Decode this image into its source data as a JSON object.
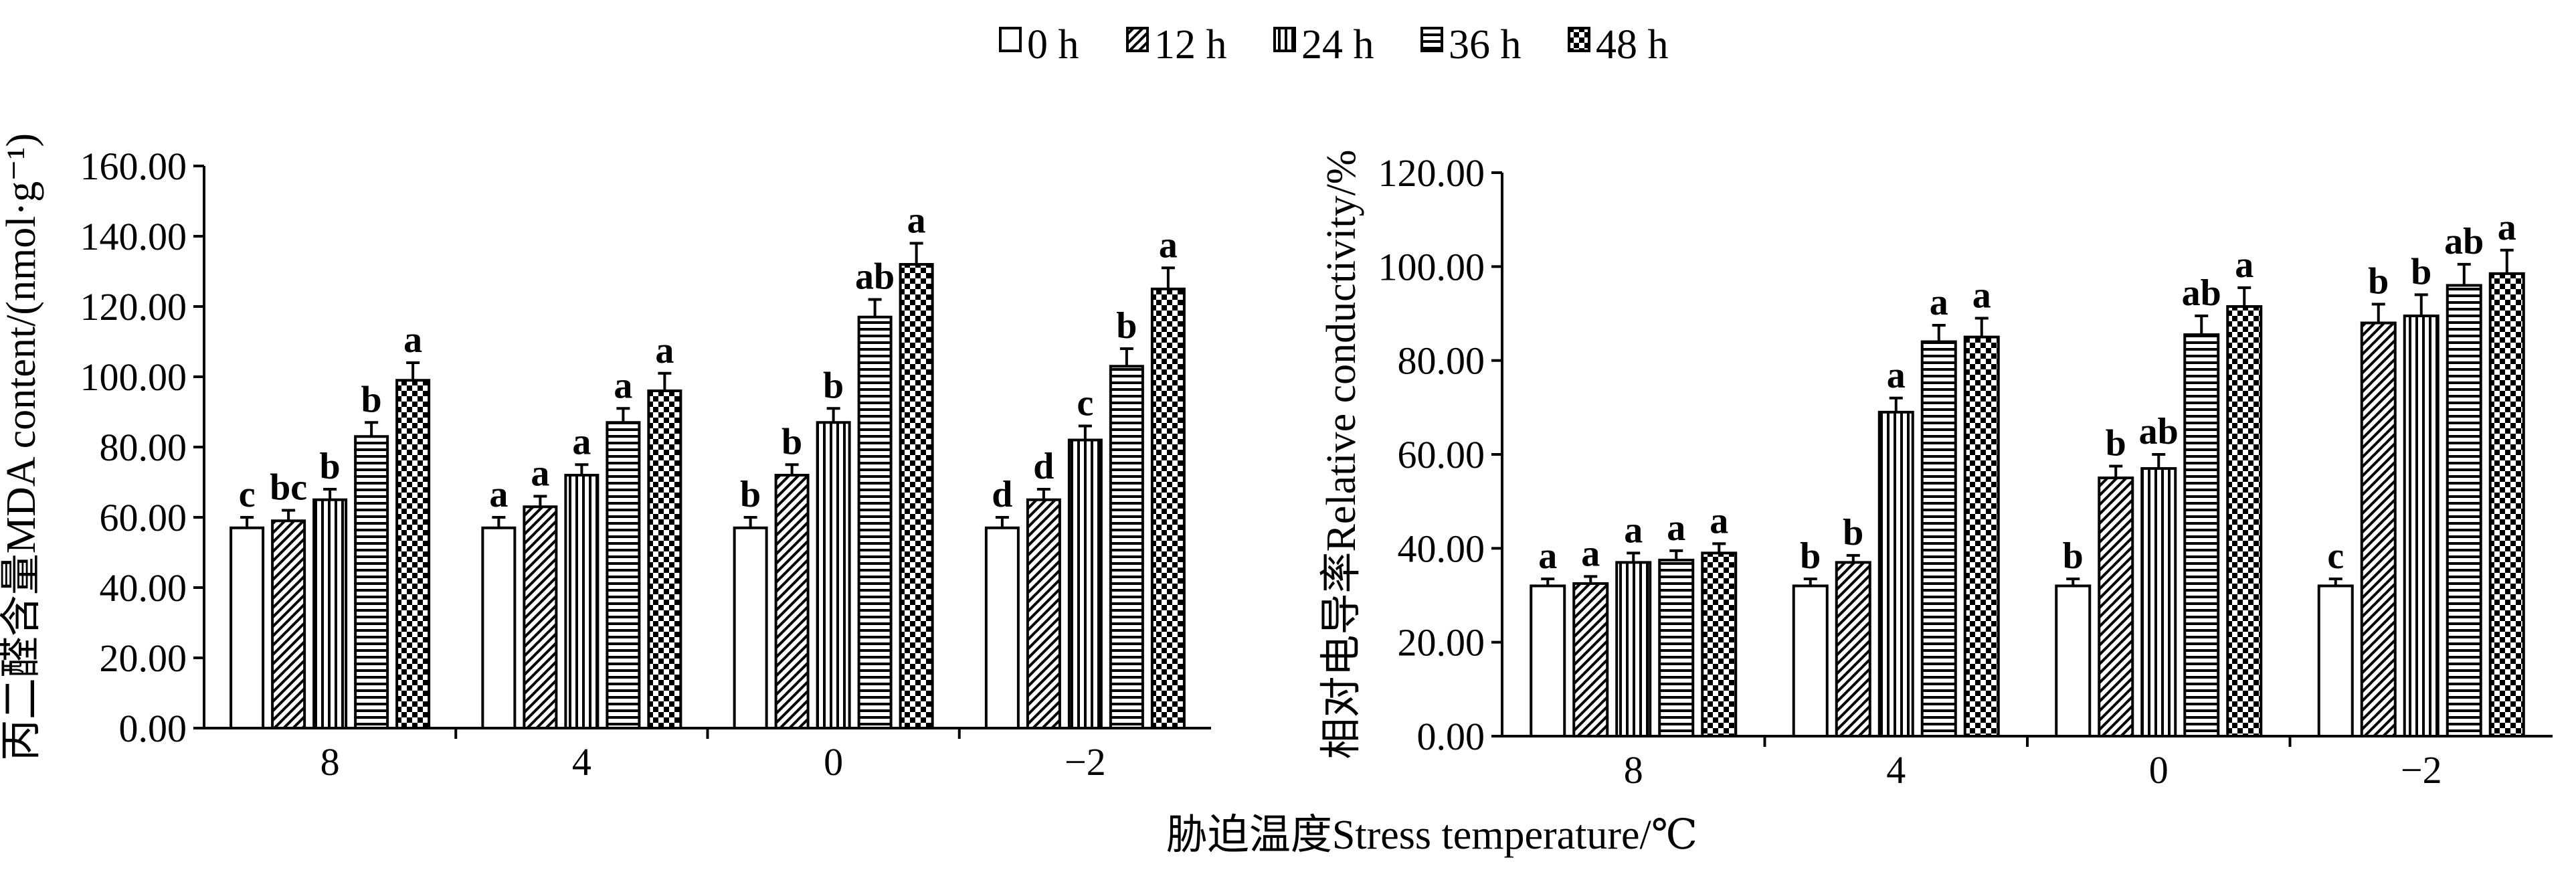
{
  "chart_data": [
    {
      "type": "bar",
      "categories": [
        "8",
        "4",
        "0",
        "−2"
      ],
      "series": [
        {
          "name": "0 h",
          "values": [
            57,
            57,
            57,
            57
          ]
        },
        {
          "name": "12 h",
          "values": [
            59,
            63,
            72,
            65
          ]
        },
        {
          "name": "24 h",
          "values": [
            65,
            72,
            87,
            82
          ]
        },
        {
          "name": "36 h",
          "values": [
            83,
            87,
            117,
            103
          ]
        },
        {
          "name": "48 h",
          "values": [
            99,
            96,
            132,
            125
          ]
        }
      ],
      "errors": [
        [
          3,
          3,
          3,
          3
        ],
        [
          3,
          3,
          3,
          3
        ],
        [
          3,
          3,
          4,
          4
        ],
        [
          4,
          4,
          5,
          5
        ],
        [
          5,
          5,
          6,
          6
        ]
      ],
      "letters": [
        [
          "c",
          "a",
          "b",
          "d"
        ],
        [
          "bc",
          "a",
          "b",
          "d"
        ],
        [
          "b",
          "a",
          "b",
          "c"
        ],
        [
          "b",
          "a",
          "ab",
          "b"
        ],
        [
          "a",
          "a",
          "a",
          "a"
        ]
      ],
      "ylabel": "丙二醛含量MDA content/(nmol·g⁻¹)",
      "ylim": [
        0,
        160
      ],
      "yticks": [
        "0.00",
        "20.00",
        "40.00",
        "60.00",
        "80.00",
        "100.00",
        "120.00",
        "140.00",
        "160.00"
      ],
      "ytick_values": [
        0,
        20,
        40,
        60,
        80,
        100,
        120,
        140,
        160
      ]
    },
    {
      "type": "bar",
      "categories": [
        "8",
        "4",
        "0",
        "−2"
      ],
      "series": [
        {
          "name": "0 h",
          "values": [
            32,
            32,
            32,
            32
          ]
        },
        {
          "name": "12 h",
          "values": [
            32.5,
            37,
            55,
            88
          ]
        },
        {
          "name": "24 h",
          "values": [
            37,
            69,
            57,
            89.5
          ]
        },
        {
          "name": "36 h",
          "values": [
            37.5,
            84,
            85.5,
            96
          ]
        },
        {
          "name": "48 h",
          "values": [
            39,
            85,
            91.5,
            98.5
          ]
        }
      ],
      "errors": [
        [
          1.5,
          1.5,
          1.5,
          1.5
        ],
        [
          1.5,
          1.5,
          2.5,
          4
        ],
        [
          2,
          3,
          3,
          4.5
        ],
        [
          2,
          3.5,
          4,
          4.5
        ],
        [
          2,
          4,
          4,
          5
        ]
      ],
      "letters": [
        [
          "a",
          "b",
          "b",
          "c"
        ],
        [
          "a",
          "b",
          "b",
          "b"
        ],
        [
          "a",
          "a",
          "ab",
          "b"
        ],
        [
          "a",
          "a",
          "ab",
          "ab"
        ],
        [
          "a",
          "a",
          "a",
          "a"
        ]
      ],
      "ylabel": "相对电导率Relative conductivity/%",
      "ylim": [
        0,
        120
      ],
      "yticks": [
        "0.00",
        "20.00",
        "40.00",
        "60.00",
        "80.00",
        "100.00",
        "120.00"
      ],
      "ytick_values": [
        0,
        20,
        40,
        60,
        80,
        100,
        120
      ]
    }
  ],
  "legend": {
    "placement": "top-center",
    "items": [
      "0 h",
      "12 h",
      "24 h",
      "36 h",
      "48 h"
    ]
  },
  "xlabel": "胁迫温度Stress temperature/℃"
}
